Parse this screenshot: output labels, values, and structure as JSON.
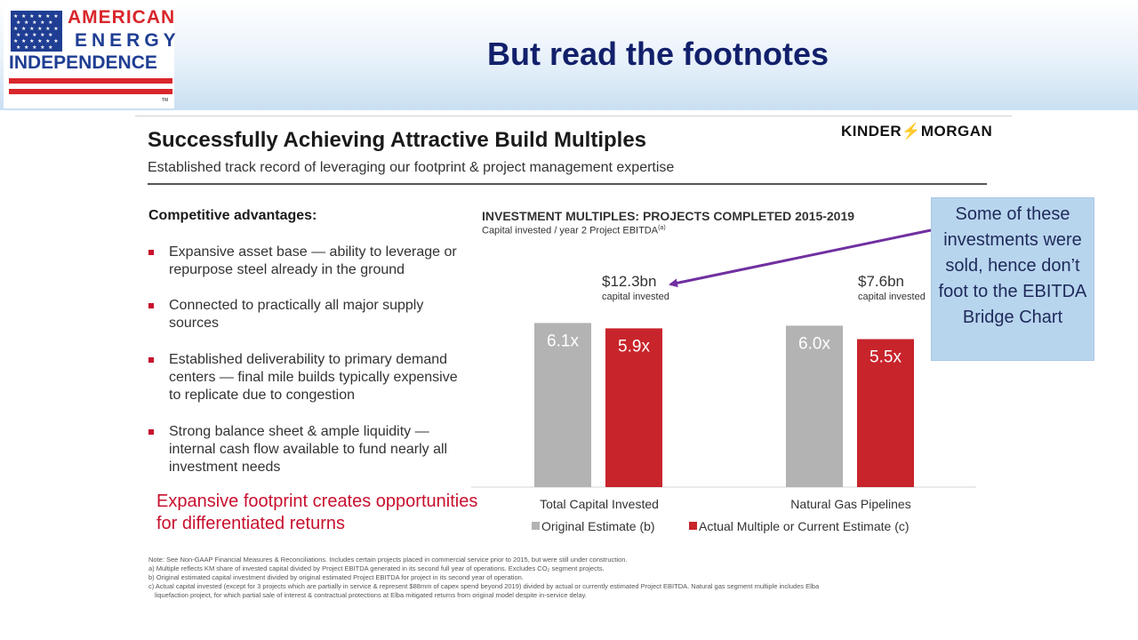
{
  "slide": {
    "title": "But read the footnotes"
  },
  "logo": {
    "line1": "AMERICAN",
    "line2": "ENERGY",
    "line3": "INDEPENDENCE",
    "trademark": "TM",
    "colors": {
      "red": "#d9262c",
      "blue": "#1f3e93"
    }
  },
  "panel": {
    "title": "Successfully Achieving Attractive Build Multiples",
    "subtitle": "Established track record of leveraging our footprint & project management expertise",
    "brand": {
      "left": "KINDER",
      "right": "MORGAN"
    }
  },
  "advantages": {
    "heading": "Competitive advantages:",
    "items": [
      "Expansive asset base — ability to leverage or repurpose steel already in the ground",
      "Connected to practically all major supply sources",
      "Established deliverability to primary demand centers — final mile builds typically expensive to replicate due to congestion",
      "Strong balance sheet & ample liquidity — internal cash flow available to fund nearly all investment needs"
    ],
    "tagline": "Expansive footprint creates opportunities for differentiated returns"
  },
  "callout": {
    "text": "Some of these investments were sold, hence don’t foot to the EBITDA Bridge Chart"
  },
  "chart_data": {
    "type": "bar",
    "title": "INVESTMENT MULTIPLES:  PROJECTS COMPLETED 2015-2019",
    "subtitle": "Capital invested / year 2 Project EBITDA",
    "subtitle_superscript": "(a)",
    "categories": [
      "Total Capital Invested",
      "Natural Gas Pipelines"
    ],
    "series": [
      {
        "name": "Original Estimate (b)",
        "values": [
          6.1,
          6.0
        ],
        "labels": [
          "6.1x",
          "6.0x"
        ],
        "color": "#b3b3b3"
      },
      {
        "name": "Actual Multiple or Current Estimate (c)",
        "values": [
          5.9,
          5.5
        ],
        "labels": [
          "5.9x",
          "5.5x"
        ],
        "color": "#c8242b"
      }
    ],
    "group_annotations": [
      {
        "amount": "$12.3bn",
        "caption": "capital invested"
      },
      {
        "amount": "$7.6bn",
        "caption": "capital invested"
      }
    ],
    "ylim": [
      0,
      7.4
    ],
    "grid": false,
    "legend_position": "bottom",
    "arrow_color": "#7030a0"
  },
  "footnotes": [
    "Note:  See Non-GAAP Financial Measures & Reconciliations. Includes certain projects placed in commercial service prior to 2015, but were still under construction.",
    "a)   Multiple reflects KM share of invested capital divided by Project EBITDA generated in its second full year of operations. Excludes CO₂ segment projects.",
    "b)   Original estimated capital investment divided by original estimated Project EBITDA for project in its second year of operation.",
    "c)   Actual capital invested (except for 3 projects which are partially in service & represent $88mm of capex spend beyond 2019) divided by actual or currently estimated Project EBITDA. Natural gas segment multiple includes Elba",
    "liquefaction project, for which partial sale of interest & contractual protections at Elba mitigated returns from original model despite in-service delay."
  ]
}
